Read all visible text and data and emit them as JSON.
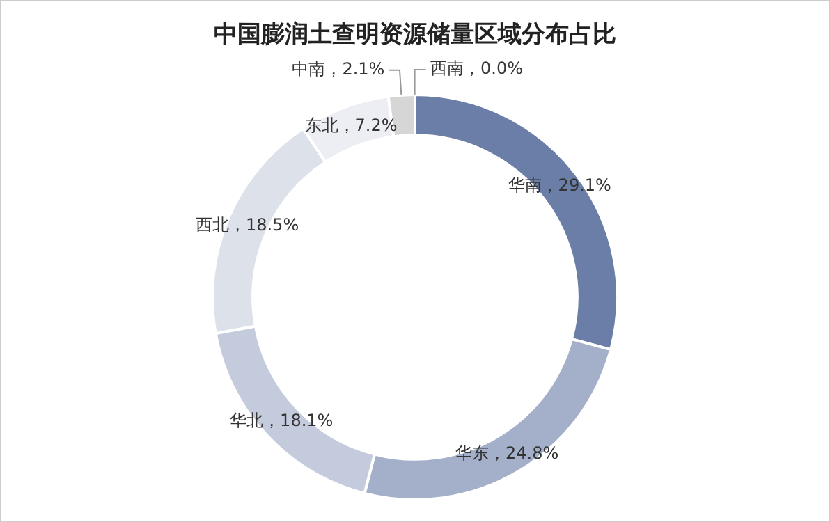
{
  "chart_data": {
    "type": "donut",
    "title": "中国膨润土查明资源储量区域分布占比",
    "categories": [
      "华南",
      "华东",
      "华北",
      "西北",
      "东北",
      "中南",
      "西南"
    ],
    "values": [
      29.1,
      24.8,
      18.1,
      18.5,
      7.2,
      2.1,
      0.0
    ],
    "value_labels": [
      "，29.1%",
      "，24.8%",
      "，18.1%",
      "，18.5%",
      "，7.2%",
      "，2.1%",
      "，0.0%"
    ],
    "colors": [
      "#6b7ea7",
      "#a4b0ca",
      "#c4cbdd",
      "#dde1ea",
      "#eceef3",
      "#d6d6d6",
      "#e8e8e8"
    ],
    "legend": false
  }
}
